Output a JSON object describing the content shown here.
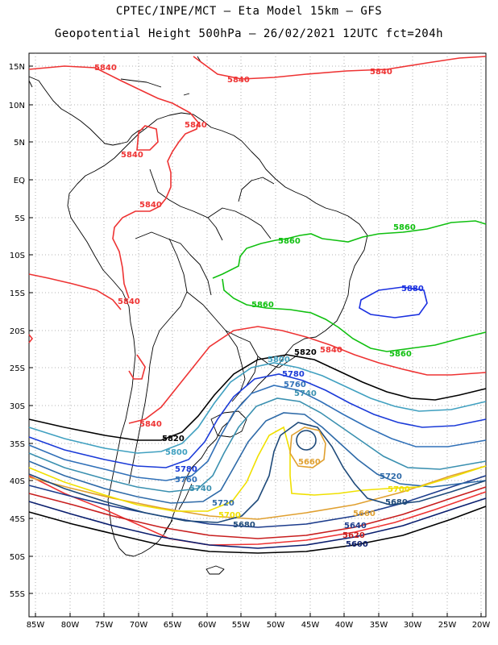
{
  "title": {
    "line1": "CPTEC/INPE/MCT –  Eta Model 15km – GFS",
    "line2": "Geopotential Height 500hPa – 26/02/2021 12UTC fct=204h"
  },
  "axes": {
    "lat_ticks": [
      "15N",
      "10N",
      "5N",
      "EQ",
      "5S",
      "10S",
      "15S",
      "20S",
      "25S",
      "30S",
      "35S",
      "40S",
      "45S",
      "50S",
      "55S"
    ],
    "lon_ticks": [
      "85W",
      "80W",
      "75W",
      "70W",
      "65W",
      "60W",
      "55W",
      "50W",
      "45W",
      "40W",
      "35W",
      "30W",
      "25W",
      "20W"
    ],
    "lat_range": [
      17,
      -58
    ],
    "lon_range": [
      -86,
      -19.5
    ],
    "grid": "dotted"
  },
  "contour_colors": {
    "5600": "#0a1e6e",
    "5620": "#c81e1e",
    "5640": "#1c3c8c",
    "5660": "#e0a030",
    "5680": "#1e4a7a",
    "5700": "#f0e000",
    "5720": "#2e6aa8",
    "5740": "#3a90b0",
    "5760": "#3070b8",
    "5780": "#1a3ad8",
    "5800": "#40a0c0",
    "5820": "#000000",
    "5840": "#ee3333",
    "5860": "#10c010",
    "5880": "#1a30e0"
  },
  "contour_labels": [
    {
      "text": "5840",
      "color": "#ee3333"
    },
    {
      "text": "5840",
      "color": "#ee3333"
    },
    {
      "text": "5840",
      "color": "#ee3333"
    },
    {
      "text": "5840",
      "color": "#ee3333"
    },
    {
      "text": "5840",
      "color": "#ee3333"
    },
    {
      "text": "5840",
      "color": "#ee3333"
    },
    {
      "text": "5840",
      "color": "#ee3333"
    },
    {
      "text": "5840",
      "color": "#ee3333"
    },
    {
      "text": "5840",
      "color": "#ee3333"
    },
    {
      "text": "5860",
      "color": "#10c010"
    },
    {
      "text": "5860",
      "color": "#10c010"
    },
    {
      "text": "5860",
      "color": "#10c010"
    },
    {
      "text": "5860",
      "color": "#10c010"
    },
    {
      "text": "5880",
      "color": "#1a30e0"
    },
    {
      "text": "5820",
      "color": "#000000"
    },
    {
      "text": "5820",
      "color": "#000000"
    },
    {
      "text": "5800",
      "color": "#40a0c0"
    },
    {
      "text": "5800",
      "color": "#40a0c0"
    },
    {
      "text": "5780",
      "color": "#1a3ad8"
    },
    {
      "text": "5780",
      "color": "#1a3ad8"
    },
    {
      "text": "5760",
      "color": "#3070b8"
    },
    {
      "text": "5760",
      "color": "#3070b8"
    },
    {
      "text": "5740",
      "color": "#3a90b0"
    },
    {
      "text": "5740",
      "color": "#3a90b0"
    },
    {
      "text": "5720",
      "color": "#2e6aa8"
    },
    {
      "text": "5720",
      "color": "#2e6aa8"
    },
    {
      "text": "5700",
      "color": "#f0e000"
    },
    {
      "text": "5700",
      "color": "#f0e000"
    },
    {
      "text": "5680",
      "color": "#1e4a7a"
    },
    {
      "text": "5680",
      "color": "#1e4a7a"
    },
    {
      "text": "5660",
      "color": "#e0a030"
    },
    {
      "text": "5660",
      "color": "#e0a030"
    },
    {
      "text": "5640",
      "color": "#1c3c8c"
    },
    {
      "text": "5620",
      "color": "#c81e1e"
    },
    {
      "text": "5600",
      "color": "#0a1e6e"
    }
  ]
}
